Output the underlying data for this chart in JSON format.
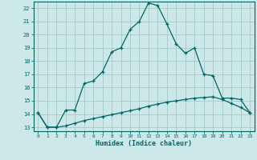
{
  "xlabel": "Humidex (Indice chaleur)",
  "bg_color": "#cce8e8",
  "grid_color": "#aacccc",
  "line_color": "#006666",
  "xlim_min": -0.5,
  "xlim_max": 23.5,
  "ylim_min": 12.7,
  "ylim_max": 22.5,
  "yticks": [
    13,
    14,
    15,
    16,
    17,
    18,
    19,
    20,
    21,
    22
  ],
  "xticks": [
    0,
    1,
    2,
    3,
    4,
    5,
    6,
    7,
    8,
    9,
    10,
    11,
    12,
    13,
    14,
    15,
    16,
    17,
    18,
    19,
    20,
    21,
    22,
    23
  ],
  "series1_x": [
    0,
    1,
    2,
    3,
    4,
    5,
    5,
    6,
    7,
    8,
    9,
    10,
    11,
    12,
    13,
    14,
    15,
    16,
    16,
    17,
    17,
    18,
    19,
    20,
    21,
    22,
    23
  ],
  "series1_y": [
    14.1,
    13.0,
    13.0,
    14.3,
    14.3,
    15.5,
    16.3,
    16.5,
    17.2,
    18.7,
    19.0,
    20.4,
    21.0,
    22.4,
    22.2,
    20.8,
    19.3,
    19.3,
    18.6,
    18.6,
    19.0,
    17.0,
    16.9,
    15.2,
    15.2,
    15.1,
    14.1
  ],
  "series1_markers_x": [
    0,
    1,
    2,
    3,
    4,
    5,
    6,
    7,
    8,
    9,
    10,
    11,
    12,
    13,
    14,
    15,
    16,
    17,
    18,
    19,
    20,
    21,
    22,
    23
  ],
  "series1_markers_y": [
    14.1,
    13.0,
    13.0,
    14.3,
    14.3,
    16.3,
    16.5,
    17.2,
    18.7,
    19.0,
    20.4,
    21.0,
    22.4,
    22.2,
    20.8,
    19.3,
    18.6,
    19.0,
    17.0,
    16.9,
    15.2,
    15.2,
    15.1,
    14.1
  ],
  "series2_x": [
    0,
    1,
    2,
    3,
    4,
    5,
    6,
    7,
    8,
    9,
    10,
    11,
    12,
    13,
    14,
    15,
    16,
    17,
    18,
    19,
    20,
    21,
    22,
    23
  ],
  "series2_y": [
    14.1,
    13.0,
    13.0,
    13.1,
    13.3,
    13.5,
    13.65,
    13.8,
    13.95,
    14.1,
    14.25,
    14.4,
    14.6,
    14.75,
    14.9,
    15.0,
    15.1,
    15.2,
    15.25,
    15.3,
    15.1,
    14.8,
    14.5,
    14.1
  ]
}
